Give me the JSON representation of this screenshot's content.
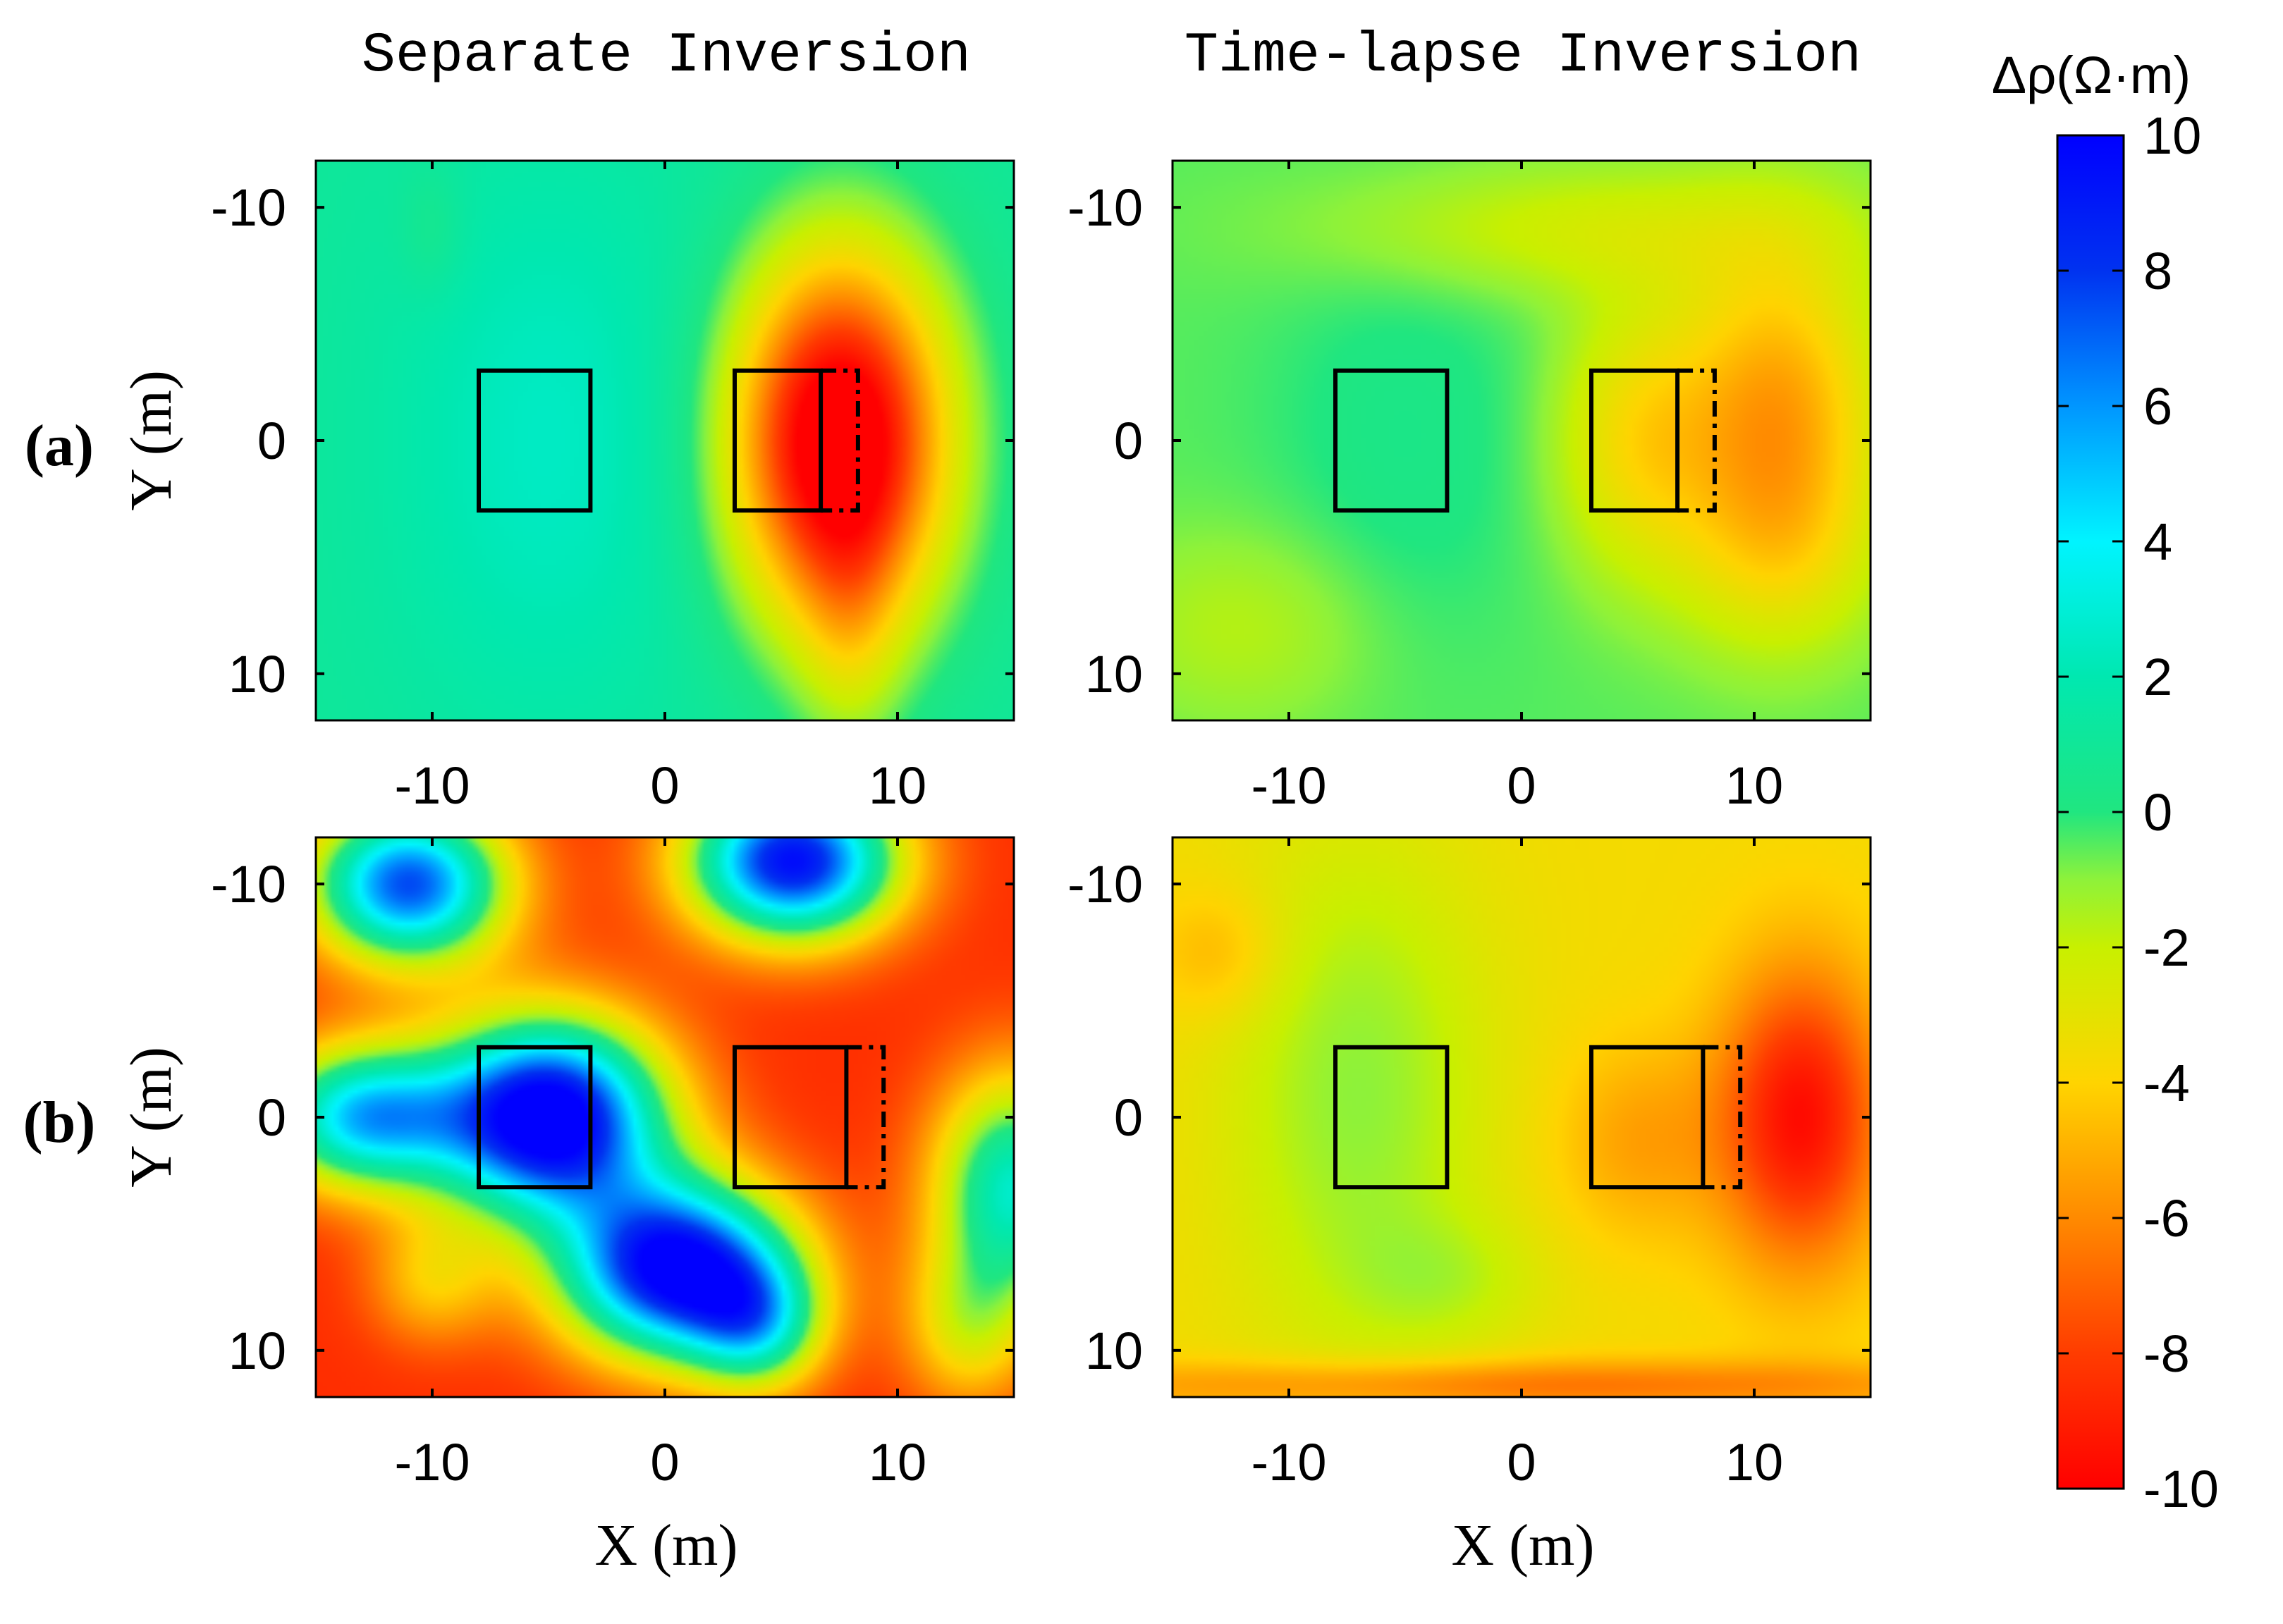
{
  "colors": {
    "scale_stops": [
      {
        "v": -10,
        "c": "#ff0000"
      },
      {
        "v": -8,
        "c": "#ff3c00"
      },
      {
        "v": -6,
        "c": "#ff8a00"
      },
      {
        "v": -4,
        "c": "#ffd400"
      },
      {
        "v": -2,
        "c": "#c8f000"
      },
      {
        "v": -1,
        "c": "#8ef23a"
      },
      {
        "v": 0,
        "c": "#20e680"
      },
      {
        "v": 2,
        "c": "#00e8b0"
      },
      {
        "v": 4,
        "c": "#00f4ff"
      },
      {
        "v": 6,
        "c": "#0096ff"
      },
      {
        "v": 8,
        "c": "#0032f0"
      },
      {
        "v": 10,
        "c": "#0000ff"
      }
    ],
    "box_stroke": "#000000"
  },
  "chart_data": {
    "type": "heatmap",
    "column_titles": [
      "Separate Inversion",
      "Time-lapse Inversion"
    ],
    "row_labels": [
      "(a)",
      "(b)"
    ],
    "xlabel": "X (m)",
    "ylabel": "Y (m)",
    "xlim": [
      -15,
      15
    ],
    "ylim": [
      -12,
      12
    ],
    "xticks": [
      -10,
      0,
      10
    ],
    "yticks": [
      -10,
      0,
      10
    ],
    "xtick_labels": [
      "-10",
      "0",
      "10"
    ],
    "ytick_labels": [
      "-10",
      "0",
      "10"
    ],
    "colorbar": {
      "title": "Δρ(Ω·m)",
      "range": [
        -10,
        10
      ],
      "ticks": [
        10,
        8,
        6,
        4,
        2,
        0,
        -2,
        -4,
        -6,
        -8,
        -10
      ],
      "tick_labels": [
        "10",
        "8",
        "6",
        "4",
        "2",
        "0",
        "-2",
        "-4",
        "-6",
        "-8",
        "-10"
      ]
    },
    "boxes": [
      {
        "shape": "solid",
        "x": [
          -8,
          -3.2
        ],
        "y": [
          -3,
          3
        ]
      },
      {
        "shape": "solid",
        "x": [
          3,
          7.8
        ],
        "y": [
          -3,
          3
        ]
      }
    ],
    "moved_edge": {
      "a": {
        "solid_right_x": 6.7,
        "dashed_right_x": 8.3
      },
      "b": {
        "solid_right_x": 7.8,
        "dashed_right_x": 9.4
      }
    },
    "panels": [
      {
        "id": "a-separate",
        "row": "(a)",
        "column": "Separate Inversion",
        "background": 1.0,
        "anomalies": [
          {
            "x": 7.5,
            "y": 0,
            "sx": 3.2,
            "sy": 5.5,
            "value": -13
          },
          {
            "x": -5,
            "y": 0,
            "sx": 5,
            "sy": 9,
            "value": 1.5
          },
          {
            "x": 8,
            "y": 8,
            "sx": 1.5,
            "sy": 4,
            "value": -2
          },
          {
            "x": -10,
            "y": -9,
            "sx": 1,
            "sy": 2,
            "value": -0.8
          }
        ]
      },
      {
        "id": "a-timelapse",
        "row": "(a)",
        "column": "Time-lapse Inversion",
        "background": -0.5,
        "anomalies": [
          {
            "x": 11,
            "y": -1,
            "sx": 3,
            "sy": 5,
            "value": -5
          },
          {
            "x": 5,
            "y": 0,
            "sx": 2.5,
            "sy": 4,
            "value": -3
          },
          {
            "x": 3,
            "y": -9,
            "sx": 8,
            "sy": 2,
            "value": -1.8
          },
          {
            "x": 11,
            "y": 5,
            "sx": 3,
            "sy": 3,
            "value": -1.5
          },
          {
            "x": -12,
            "y": 8,
            "sx": 4,
            "sy": 3,
            "value": -1.2
          },
          {
            "x": -5,
            "y": 0,
            "sx": 4,
            "sy": 6,
            "value": 0.8
          }
        ]
      },
      {
        "id": "b-separate",
        "row": "(b)",
        "column": "Separate Inversion",
        "background": -8.5,
        "anomalies": [
          {
            "x": -11,
            "y": -10,
            "sx": 3,
            "sy": 2.4,
            "value": 16
          },
          {
            "x": 5.5,
            "y": -11,
            "sx": 3.2,
            "sy": 2.4,
            "value": 18
          },
          {
            "x": -5,
            "y": 0,
            "sx": 3.5,
            "sy": 3,
            "value": 20
          },
          {
            "x": -13,
            "y": 0,
            "sx": 3,
            "sy": 2.2,
            "value": 13
          },
          {
            "x": 0.5,
            "y": 6.5,
            "sx": 3.5,
            "sy": 2.7,
            "value": 19
          },
          {
            "x": 4,
            "y": 9,
            "sx": 2,
            "sy": 2,
            "value": 8
          },
          {
            "x": 15,
            "y": 3,
            "sx": 2.5,
            "sy": 3.5,
            "value": 11
          },
          {
            "x": 13,
            "y": 9,
            "sx": 2,
            "sy": 2.5,
            "value": 5
          },
          {
            "x": -10,
            "y": 7,
            "sx": 2,
            "sy": 2,
            "value": 4
          }
        ]
      },
      {
        "id": "b-timelapse",
        "row": "(b)",
        "column": "Time-lapse Inversion",
        "background": -3.6,
        "anomalies": [
          {
            "x": 12,
            "y": 0,
            "sx": 2.5,
            "sy": 4.5,
            "value": -6
          },
          {
            "x": 5,
            "y": 1,
            "sx": 2.5,
            "sy": 3,
            "value": -1.8
          },
          {
            "x": -7,
            "y": -1,
            "sx": 4,
            "sy": 8,
            "value": 2.6
          },
          {
            "x": -3,
            "y": 7,
            "sx": 3,
            "sy": 2,
            "value": 1.3
          },
          {
            "x": 0,
            "y": 11.5,
            "sx": 15,
            "sy": 0.8,
            "value": -3
          },
          {
            "x": -13,
            "y": -7,
            "sx": 2,
            "sy": 2,
            "value": -1.5
          }
        ]
      }
    ]
  }
}
